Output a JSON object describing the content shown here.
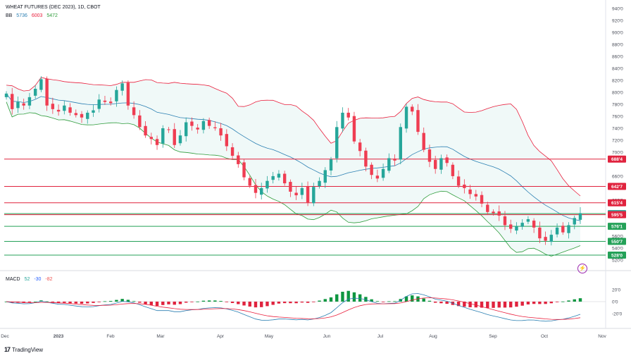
{
  "chart_data": {
    "type": "candlestick",
    "title": "WHEAT FUTURES (DEC 2023), 1D, CBOT",
    "indicators": {
      "bb": {
        "label": "BB",
        "values": [
          "5736",
          "6003",
          "5472"
        ],
        "colors": [
          "#2a7fb2",
          "#e91e3c",
          "#2e9c3b"
        ]
      },
      "macd": {
        "label": "MACD",
        "values": [
          "52",
          "-30",
          "-82"
        ],
        "colors": [
          "#26a69a",
          "#2962ff",
          "#ef5350"
        ]
      }
    },
    "price_axis": {
      "ticks": [
        "940'0",
        "920'0",
        "900'0",
        "880'0",
        "860'0",
        "840'0",
        "820'0",
        "800'0",
        "780'0",
        "760'0",
        "740'0",
        "720'0",
        "700'0",
        "660'0",
        "620'0",
        "600'0",
        "560'0",
        "540'0",
        "520'0"
      ],
      "ylim": [
        515,
        945
      ]
    },
    "macd_axis": {
      "ticks": [
        "20'0",
        "0'0",
        "-20'0"
      ],
      "ylim": [
        -35,
        35
      ]
    },
    "time_axis": {
      "labels": [
        "Dec",
        "2023",
        "Feb",
        "Mar",
        "Apr",
        "May",
        "Jun",
        "Jul",
        "Aug",
        "Sep",
        "Oct",
        "Nov"
      ]
    },
    "levels": [
      {
        "label": "688'4",
        "value": 688.5,
        "color": "#e0233e"
      },
      {
        "label": "642'7",
        "value": 642.875,
        "color": "#e0233e"
      },
      {
        "label": "615'4",
        "value": 615.5,
        "color": "#e0233e"
      },
      {
        "label": "597'2",
        "value": 597.25,
        "color": "#24a158",
        "badge_bg": "#26a69a"
      },
      {
        "label": "595'5",
        "value": 595.625,
        "color": "#e0233e"
      },
      {
        "label": "576'1",
        "value": 576.125,
        "color": "#24a158"
      },
      {
        "label": "550'7",
        "value": 550.875,
        "color": "#24a158"
      },
      {
        "label": "528'0",
        "value": 528.0,
        "color": "#24a158"
      }
    ],
    "close_series": [
      798,
      772,
      784,
      778,
      792,
      806,
      822,
      778,
      772,
      768,
      778,
      766,
      762,
      758,
      766,
      770,
      788,
      784,
      782,
      804,
      815,
      778,
      762,
      742,
      728,
      722,
      712,
      740,
      738,
      712,
      728,
      750,
      744,
      738,
      752,
      744,
      740,
      728,
      710,
      694,
      680,
      658,
      644,
      632,
      640,
      652,
      660,
      664,
      648,
      634,
      628,
      640,
      616,
      642,
      652,
      670,
      688,
      742,
      766,
      758,
      718,
      702,
      676,
      662,
      656,
      672,
      690,
      686,
      742,
      776,
      768,
      734,
      704,
      684,
      672,
      690,
      682,
      660,
      644,
      640,
      630,
      626,
      614,
      600,
      598,
      594,
      578,
      572,
      576,
      582,
      588,
      574,
      556,
      552,
      562,
      574,
      566,
      578,
      590,
      598
    ]
  },
  "footer": {
    "brand": "TradingView"
  }
}
